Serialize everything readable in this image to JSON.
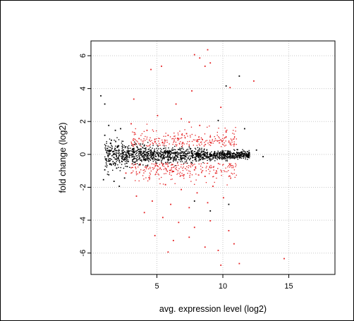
{
  "chart_data": {
    "type": "scatter",
    "title": "",
    "xlabel": "avg. expression level (log2)",
    "ylabel": "fold change (log2)",
    "xlim": [
      0,
      18.5
    ],
    "ylim": [
      -7.3,
      6.9
    ],
    "x_ticks": [
      5,
      10,
      15
    ],
    "y_ticks": [
      -6,
      -4,
      -2,
      0,
      2,
      4,
      6
    ],
    "grid": true,
    "legend": "none",
    "series": [
      {
        "color": "#000000",
        "points": [
          [
            0.7,
            3.6
          ],
          [
            1.0,
            3.1
          ],
          [
            1.3,
            1.8
          ],
          [
            1.0,
            1.2
          ],
          [
            1.5,
            0.9
          ],
          [
            1.8,
            1.5
          ],
          [
            2.2,
            1.6
          ],
          [
            1.2,
            0.4
          ],
          [
            1.6,
            0.2
          ],
          [
            2.0,
            0.5
          ],
          [
            2.4,
            0.3
          ],
          [
            2.8,
            0.1
          ],
          [
            3.2,
            0.4
          ],
          [
            3.6,
            0.2
          ],
          [
            1.1,
            -0.3
          ],
          [
            1.5,
            -0.6
          ],
          [
            1.9,
            -0.8
          ],
          [
            2.3,
            -0.4
          ],
          [
            2.7,
            -0.7
          ],
          [
            3.1,
            -0.3
          ],
          [
            1.3,
            -1.2
          ],
          [
            1.7,
            -1.6
          ],
          [
            2.1,
            -1.9
          ],
          [
            2.5,
            -1.4
          ],
          [
            1.0,
            -0.9
          ],
          [
            0.9,
            -1.5
          ],
          [
            4.0,
            0.6
          ],
          [
            4.5,
            0.3
          ],
          [
            5.0,
            0.1
          ],
          [
            5.5,
            -0.2
          ],
          [
            6.0,
            0.2
          ],
          [
            6.5,
            -0.1
          ],
          [
            7.0,
            0.1
          ],
          [
            7.5,
            -0.2
          ],
          [
            8.0,
            0.1
          ],
          [
            8.5,
            0.2
          ],
          [
            9.0,
            -0.1
          ],
          [
            9.5,
            0.1
          ],
          [
            10.0,
            0.0
          ],
          [
            10.5,
            0.1
          ],
          [
            11.0,
            -0.1
          ],
          [
            11.4,
            0.1
          ],
          [
            11.8,
            0.0
          ],
          [
            12.5,
            0.3
          ],
          [
            13.0,
            -0.1
          ],
          [
            10.2,
            4.2
          ],
          [
            11.2,
            4.8
          ],
          [
            11.6,
            1.6
          ],
          [
            9.6,
            2.1
          ],
          [
            10.4,
            -3.0
          ],
          [
            9.0,
            -3.4
          ],
          [
            7.8,
            -2.8
          ]
        ]
      },
      {
        "color": "#e41a1c",
        "points": [
          [
            8.8,
            6.4
          ],
          [
            7.8,
            6.1
          ],
          [
            8.2,
            5.9
          ],
          [
            9.0,
            5.6
          ],
          [
            8.6,
            5.4
          ],
          [
            4.5,
            5.2
          ],
          [
            5.3,
            5.4
          ],
          [
            12.3,
            4.5
          ],
          [
            10.5,
            4.1
          ],
          [
            7.6,
            3.9
          ],
          [
            3.2,
            3.4
          ],
          [
            9.8,
            2.9
          ],
          [
            6.4,
            3.1
          ],
          [
            5.0,
            2.4
          ],
          [
            6.8,
            2.2
          ],
          [
            7.4,
            2.0
          ],
          [
            8.2,
            1.8
          ],
          [
            4.2,
            1.5
          ],
          [
            5.8,
            1.2
          ],
          [
            6.6,
            1.0
          ],
          [
            7.2,
            1.3
          ],
          [
            8.0,
            0.9
          ],
          [
            9.0,
            1.1
          ],
          [
            3.6,
            1.0
          ],
          [
            4.8,
            0.8
          ],
          [
            10.2,
            1.4
          ],
          [
            5.2,
            -0.8
          ],
          [
            6.2,
            -1.0
          ],
          [
            7.0,
            -1.2
          ],
          [
            7.8,
            -0.9
          ],
          [
            8.6,
            -1.3
          ],
          [
            9.4,
            -1.1
          ],
          [
            4.4,
            -1.4
          ],
          [
            5.6,
            -1.8
          ],
          [
            6.8,
            -2.1
          ],
          [
            8.0,
            -2.3
          ],
          [
            9.2,
            -1.9
          ],
          [
            3.4,
            -2.5
          ],
          [
            4.6,
            -2.8
          ],
          [
            6.0,
            -3.0
          ],
          [
            7.4,
            -3.2
          ],
          [
            8.8,
            -2.9
          ],
          [
            10.0,
            -2.6
          ],
          [
            4.0,
            -3.5
          ],
          [
            5.4,
            -3.8
          ],
          [
            6.6,
            -4.1
          ],
          [
            7.8,
            -4.4
          ],
          [
            9.0,
            -4.0
          ],
          [
            10.4,
            -4.6
          ],
          [
            4.8,
            -4.9
          ],
          [
            6.2,
            -5.2
          ],
          [
            7.4,
            -5.0
          ],
          [
            8.6,
            -5.6
          ],
          [
            5.8,
            -5.9
          ],
          [
            9.6,
            -5.8
          ],
          [
            11.2,
            -6.6
          ],
          [
            14.6,
            -6.3
          ],
          [
            10.8,
            -5.4
          ],
          [
            9.8,
            -6.7
          ],
          [
            2.6,
            -1.1
          ],
          [
            3.0,
            1.9
          ]
        ]
      }
    ]
  }
}
